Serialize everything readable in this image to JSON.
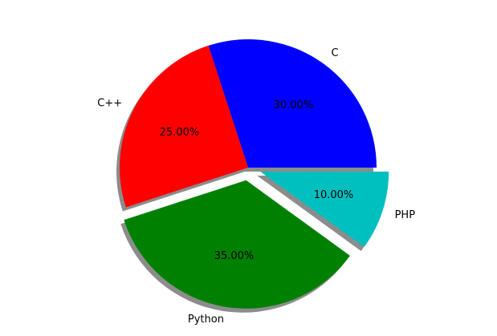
{
  "chart_data": {
    "type": "pie",
    "title": "",
    "start_angle_deg": 0,
    "direction": "counterclockwise",
    "shadow": true,
    "slices": [
      {
        "label": "C",
        "value": 30,
        "pct_label": "30.00%",
        "color": "#0000ff",
        "explode": 0
      },
      {
        "label": "C++",
        "value": 25,
        "pct_label": "25.00%",
        "color": "#ff0000",
        "explode": 0
      },
      {
        "label": "Python",
        "value": 35,
        "pct_label": "35.00%",
        "color": "#008000",
        "explode": 0.1
      },
      {
        "label": "PHP",
        "value": 10,
        "pct_label": "10.00%",
        "color": "#00bfbf",
        "explode": 0.1
      }
    ]
  }
}
